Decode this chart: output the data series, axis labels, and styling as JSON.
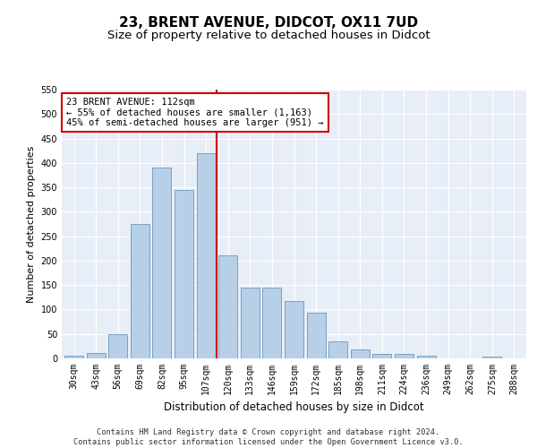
{
  "title": "23, BRENT AVENUE, DIDCOT, OX11 7UD",
  "subtitle": "Size of property relative to detached houses in Didcot",
  "xlabel": "Distribution of detached houses by size in Didcot",
  "ylabel": "Number of detached properties",
  "categories": [
    "30sqm",
    "43sqm",
    "56sqm",
    "69sqm",
    "82sqm",
    "95sqm",
    "107sqm",
    "120sqm",
    "133sqm",
    "146sqm",
    "159sqm",
    "172sqm",
    "185sqm",
    "198sqm",
    "211sqm",
    "224sqm",
    "236sqm",
    "249sqm",
    "262sqm",
    "275sqm",
    "288sqm"
  ],
  "values": [
    5,
    11,
    50,
    275,
    390,
    345,
    420,
    210,
    145,
    145,
    117,
    93,
    34,
    19,
    9,
    9,
    5,
    0,
    0,
    3,
    0
  ],
  "bar_color": "#b8cfe8",
  "bar_edge_color": "#6699bb",
  "vline_color": "#cc0000",
  "annotation_text": "23 BRENT AVENUE: 112sqm\n← 55% of detached houses are smaller (1,163)\n45% of semi-detached houses are larger (951) →",
  "annotation_box_color": "#ffffff",
  "annotation_box_edge_color": "#cc0000",
  "ylim": [
    0,
    550
  ],
  "yticks": [
    0,
    50,
    100,
    150,
    200,
    250,
    300,
    350,
    400,
    450,
    500,
    550
  ],
  "background_color": "#e8eef8",
  "footer_text": "Contains HM Land Registry data © Crown copyright and database right 2024.\nContains public sector information licensed under the Open Government Licence v3.0.",
  "title_fontsize": 11,
  "subtitle_fontsize": 9.5,
  "xlabel_fontsize": 8.5,
  "ylabel_fontsize": 8,
  "tick_fontsize": 7,
  "annotation_fontsize": 7.5
}
